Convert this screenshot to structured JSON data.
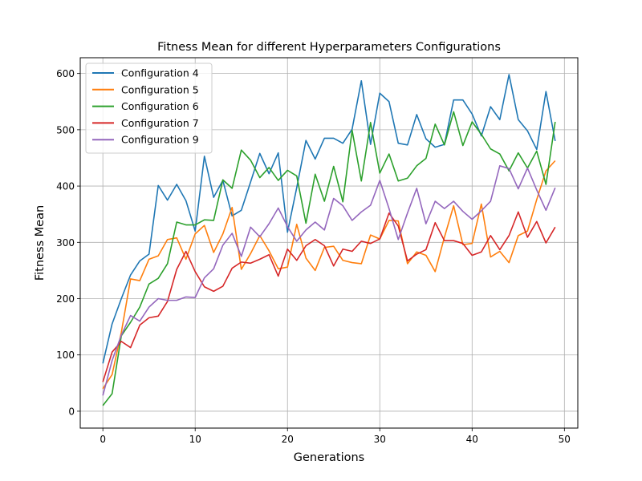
{
  "chart_data": {
    "type": "line",
    "title": "Fitness Mean for different Hyperparameters Configurations",
    "xlabel": "Generations",
    "ylabel": "Fitness Mean",
    "xlim": [
      -2.45,
      51.45
    ],
    "ylim": [
      -30,
      628
    ],
    "xticks": [
      0,
      10,
      20,
      30,
      40,
      50
    ],
    "yticks": [
      0,
      100,
      200,
      300,
      400,
      500,
      600
    ],
    "grid": true,
    "legend_position": "top-left",
    "x": [
      0,
      1,
      2,
      3,
      4,
      5,
      6,
      7,
      8,
      9,
      10,
      11,
      12,
      13,
      14,
      15,
      16,
      17,
      18,
      19,
      20,
      21,
      22,
      23,
      24,
      25,
      26,
      27,
      28,
      29,
      30,
      31,
      32,
      33,
      34,
      35,
      36,
      37,
      38,
      39,
      40,
      41,
      42,
      43,
      44,
      45,
      46,
      47,
      48,
      49
    ],
    "series": [
      {
        "name": "Configuration 4",
        "color": "#1f77b4",
        "values": [
          85,
          155,
          200,
          242,
          267,
          279,
          401,
          375,
          403,
          374,
          320,
          453,
          380,
          410,
          347,
          357,
          407,
          458,
          422,
          459,
          318,
          397,
          481,
          448,
          485,
          485,
          476,
          501,
          587,
          474,
          565,
          550,
          476,
          473,
          527,
          484,
          469,
          474,
          553,
          553,
          528,
          489,
          541,
          518,
          598,
          518,
          498,
          465,
          568,
          480
        ]
      },
      {
        "name": "Configuration 5",
        "color": "#ff7f0e",
        "values": [
          40,
          65,
          140,
          235,
          232,
          270,
          276,
          305,
          308,
          270,
          315,
          330,
          282,
          315,
          362,
          252,
          280,
          312,
          285,
          253,
          256,
          332,
          272,
          250,
          291,
          293,
          268,
          264,
          262,
          313,
          306,
          339,
          338,
          262,
          283,
          277,
          248,
          309,
          365,
          296,
          298,
          368,
          274,
          284,
          264,
          312,
          320,
          376,
          427,
          445
        ]
      },
      {
        "name": "Configuration 6",
        "color": "#2ca02c",
        "values": [
          10,
          31,
          134,
          158,
          185,
          226,
          236,
          262,
          336,
          331,
          331,
          340,
          339,
          411,
          396,
          464,
          446,
          415,
          433,
          410,
          428,
          418,
          334,
          421,
          373,
          435,
          372,
          499,
          409,
          513,
          423,
          457,
          409,
          414,
          436,
          449,
          510,
          473,
          532,
          472,
          514,
          492,
          466,
          457,
          427,
          459,
          432,
          462,
          403,
          514
        ]
      },
      {
        "name": "Configuration 7",
        "color": "#d62728",
        "values": [
          52,
          105,
          124,
          113,
          153,
          166,
          169,
          195,
          252,
          284,
          248,
          221,
          213,
          222,
          254,
          265,
          263,
          270,
          278,
          240,
          288,
          268,
          294,
          305,
          294,
          258,
          288,
          284,
          302,
          298,
          306,
          352,
          329,
          267,
          279,
          287,
          335,
          303,
          303,
          298,
          277,
          283,
          312,
          287,
          312,
          354,
          309,
          337,
          299,
          327
        ]
      },
      {
        "name": "Configuration 9",
        "color": "#9467bd",
        "values": [
          28,
          90,
          135,
          170,
          160,
          185,
          200,
          197,
          197,
          203,
          202,
          237,
          253,
          295,
          316,
          275,
          327,
          310,
          333,
          361,
          328,
          302,
          322,
          336,
          322,
          378,
          365,
          339,
          354,
          366,
          410,
          360,
          305,
          352,
          396,
          333,
          373,
          360,
          373,
          355,
          341,
          356,
          373,
          436,
          431,
          395,
          432,
          393,
          357,
          397
        ]
      }
    ]
  }
}
